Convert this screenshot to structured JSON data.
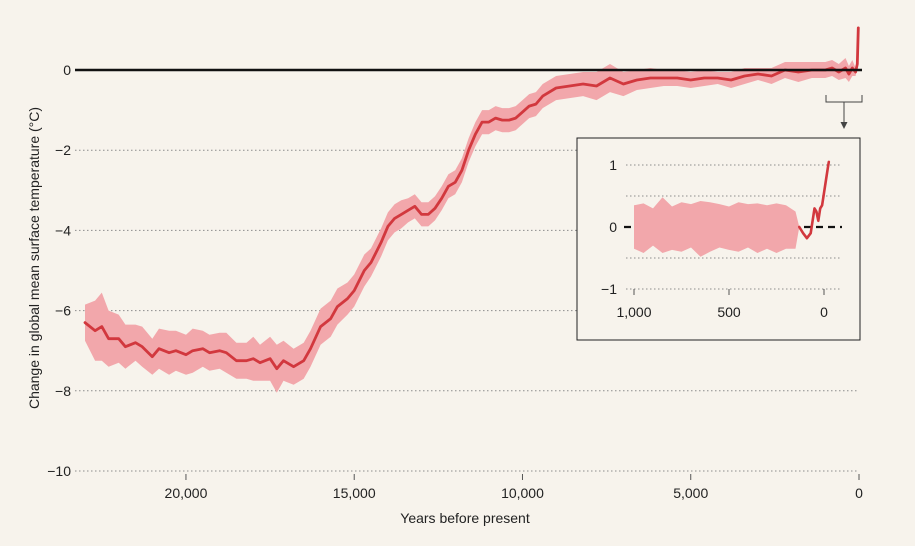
{
  "colors": {
    "background": "#f7f3ec",
    "line": "#d2383e",
    "band": "#f2a7ab",
    "zero_line": "#111111",
    "grid": "#8c8c8c"
  },
  "chart_data": [
    {
      "type": "line",
      "xlabel": "Years before present",
      "ylabel": "Change in global mean surface temperature (°C)",
      "xlim": [
        23000,
        0
      ],
      "ylim": [
        -10,
        1.2
      ],
      "x_reversed": true,
      "xticks": [
        20000,
        15000,
        10000,
        5000,
        0
      ],
      "xtick_labels": [
        "20,000",
        "15,000",
        "10,000",
        "5,000",
        "0"
      ],
      "yticks": [
        0,
        -2,
        -4,
        -6,
        -8,
        -10
      ],
      "ytick_labels": [
        "0",
        "−2",
        "−4",
        "−6",
        "−8",
        "−10"
      ],
      "grid": "dotted horizontal",
      "zero_line": true,
      "series": [
        {
          "x": [
            23000,
            22700,
            22500,
            22300,
            22000,
            21800,
            21500,
            21300,
            21000,
            20800,
            20500,
            20300,
            20000,
            19800,
            19500,
            19300,
            19000,
            18800,
            18500,
            18200,
            18000,
            17800,
            17500,
            17300,
            17100,
            16800,
            16500,
            16300,
            16000,
            15700,
            15500,
            15200,
            15000,
            14700,
            14500,
            14200,
            14000,
            13800,
            13600,
            13400,
            13200,
            13000,
            12800,
            12600,
            12400,
            12200,
            12000,
            11800,
            11600,
            11400,
            11200,
            11000,
            10800,
            10600,
            10400,
            10200,
            10000,
            9800,
            9600,
            9400,
            9000,
            8600,
            8200,
            7800,
            7400,
            7000,
            6600,
            6200,
            5800,
            5400,
            5000,
            4600,
            4200,
            3800,
            3400,
            3000,
            2600,
            2200,
            1800,
            1400,
            1000,
            800,
            600,
            400,
            300,
            200,
            150,
            100,
            50,
            20
          ],
          "y": [
            -6.3,
            -6.5,
            -6.4,
            -6.7,
            -6.7,
            -6.9,
            -6.8,
            -6.9,
            -7.15,
            -6.95,
            -7.05,
            -7.0,
            -7.1,
            -7.0,
            -6.95,
            -7.05,
            -7.0,
            -7.05,
            -7.25,
            -7.25,
            -7.2,
            -7.3,
            -7.2,
            -7.45,
            -7.25,
            -7.4,
            -7.25,
            -6.95,
            -6.4,
            -6.2,
            -5.9,
            -5.7,
            -5.5,
            -5.0,
            -4.8,
            -4.3,
            -3.9,
            -3.7,
            -3.6,
            -3.5,
            -3.4,
            -3.6,
            -3.6,
            -3.45,
            -3.2,
            -2.9,
            -2.8,
            -2.5,
            -2.0,
            -1.6,
            -1.3,
            -1.3,
            -1.2,
            -1.25,
            -1.25,
            -1.2,
            -1.05,
            -0.9,
            -0.85,
            -0.65,
            -0.45,
            -0.4,
            -0.35,
            -0.4,
            -0.2,
            -0.35,
            -0.25,
            -0.2,
            -0.2,
            -0.2,
            -0.25,
            -0.2,
            -0.2,
            -0.25,
            -0.15,
            -0.1,
            -0.15,
            0.0,
            -0.05,
            0.0,
            0.0,
            0.05,
            -0.05,
            0.05,
            -0.1,
            0.05,
            0.0,
            -0.05,
            0.15,
            1.05
          ],
          "band_halfwidth": [
            0.45,
            0.75,
            0.85,
            0.7,
            0.6,
            0.55,
            0.45,
            0.5,
            0.45,
            0.5,
            0.55,
            0.5,
            0.5,
            0.55,
            0.45,
            0.45,
            0.45,
            0.5,
            0.45,
            0.45,
            0.55,
            0.45,
            0.55,
            0.6,
            0.5,
            0.45,
            0.45,
            0.45,
            0.45,
            0.45,
            0.45,
            0.4,
            0.4,
            0.4,
            0.35,
            0.35,
            0.35,
            0.35,
            0.35,
            0.3,
            0.3,
            0.3,
            0.3,
            0.3,
            0.3,
            0.3,
            0.3,
            0.3,
            0.3,
            0.3,
            0.3,
            0.3,
            0.3,
            0.3,
            0.3,
            0.3,
            0.3,
            0.3,
            0.3,
            0.3,
            0.3,
            0.3,
            0.3,
            0.35,
            0.35,
            0.3,
            0.25,
            0.25,
            0.2,
            0.2,
            0.2,
            0.2,
            0.15,
            0.2,
            0.2,
            0.15,
            0.2,
            0.2,
            0.25,
            0.2,
            0.2,
            0.2,
            0.2,
            0.25,
            0.2,
            0.2,
            0.15,
            0.1,
            0.05,
            0.05
          ]
        }
      ]
    },
    {
      "type": "line",
      "xlabel": "",
      "ylabel": "",
      "xlim": [
        1000,
        -40
      ],
      "ylim": [
        -1,
        1.2
      ],
      "x_reversed": true,
      "xticks": [
        1000,
        500,
        0
      ],
      "xtick_labels": [
        "1,000",
        "500",
        "0"
      ],
      "yticks": [
        1,
        0,
        -1
      ],
      "ytick_labels": [
        "1",
        "0",
        "−1"
      ],
      "grid": "dotted horizontal",
      "zero_line": true,
      "series": [
        {
          "x": [
            1000,
            950,
            900,
            850,
            800,
            750,
            700,
            650,
            600,
            550,
            500,
            450,
            400,
            350,
            300,
            250,
            200,
            150,
            130,
            110,
            90,
            70,
            50,
            40,
            30,
            20,
            10,
            0,
            -10,
            -20,
            -25
          ],
          "y": [
            0.0,
            -0.02,
            0.0,
            0.03,
            -0.02,
            0.0,
            0.02,
            -0.03,
            0.0,
            0.02,
            -0.02,
            0.0,
            0.02,
            -0.02,
            0.0,
            -0.02,
            0.0,
            -0.05,
            0.0,
            -0.1,
            -0.18,
            -0.1,
            0.3,
            0.25,
            0.1,
            0.3,
            0.35,
            0.55,
            0.75,
            0.95,
            1.05
          ],
          "band_halfwidth": [
            0.35,
            0.4,
            0.3,
            0.45,
            0.35,
            0.4,
            0.35,
            0.45,
            0.4,
            0.35,
            0.35,
            0.4,
            0.35,
            0.4,
            0.35,
            0.4,
            0.35,
            0.3,
            0.0,
            0.0,
            0.0,
            0.0,
            0.0,
            0.0,
            0.0,
            0.0,
            0.0,
            0.0,
            0.0,
            0.0,
            0.0
          ],
          "band_x_range": [
            1000,
            130
          ],
          "line_x_range": [
            130,
            -25
          ]
        }
      ]
    }
  ]
}
